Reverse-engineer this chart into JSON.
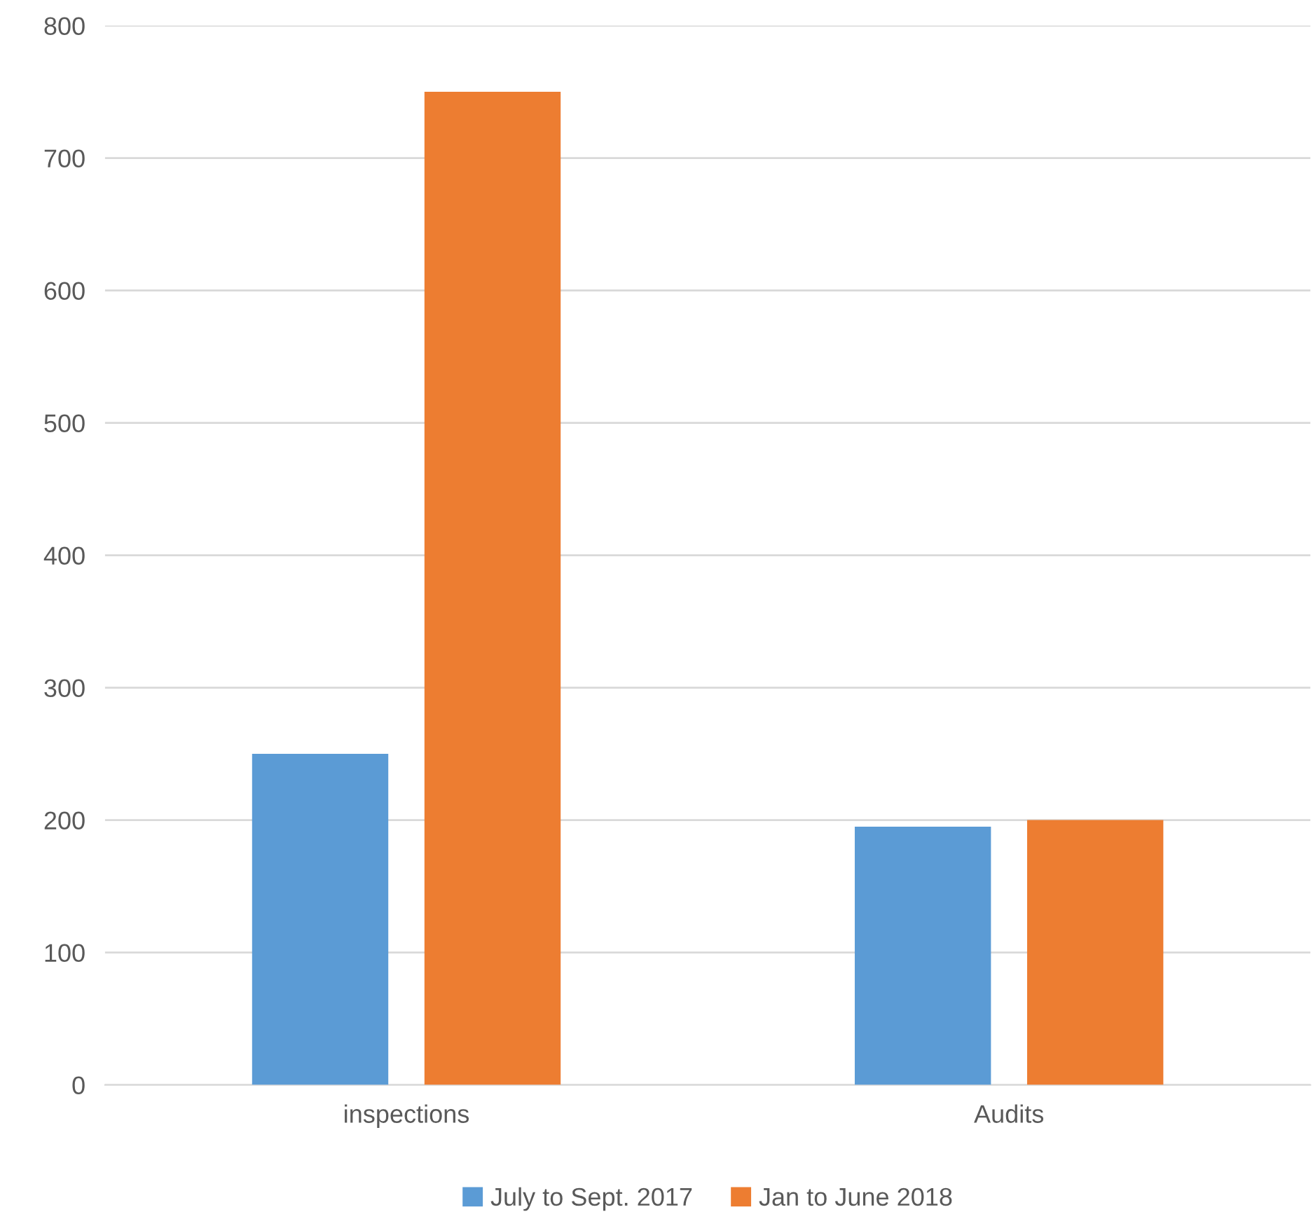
{
  "chart_data": {
    "type": "bar",
    "categories": [
      "inspections",
      "Audits"
    ],
    "series": [
      {
        "name": "July to Sept. 2017",
        "color": "#5b9bd5",
        "values": [
          250,
          195
        ]
      },
      {
        "name": "Jan to June 2018",
        "color": "#ed7d31",
        "values": [
          750,
          200
        ]
      }
    ],
    "ylim": [
      0,
      800
    ],
    "yticks": [
      0,
      100,
      200,
      300,
      400,
      500,
      600,
      700,
      800
    ],
    "grid": "y",
    "legend": "bottom"
  }
}
